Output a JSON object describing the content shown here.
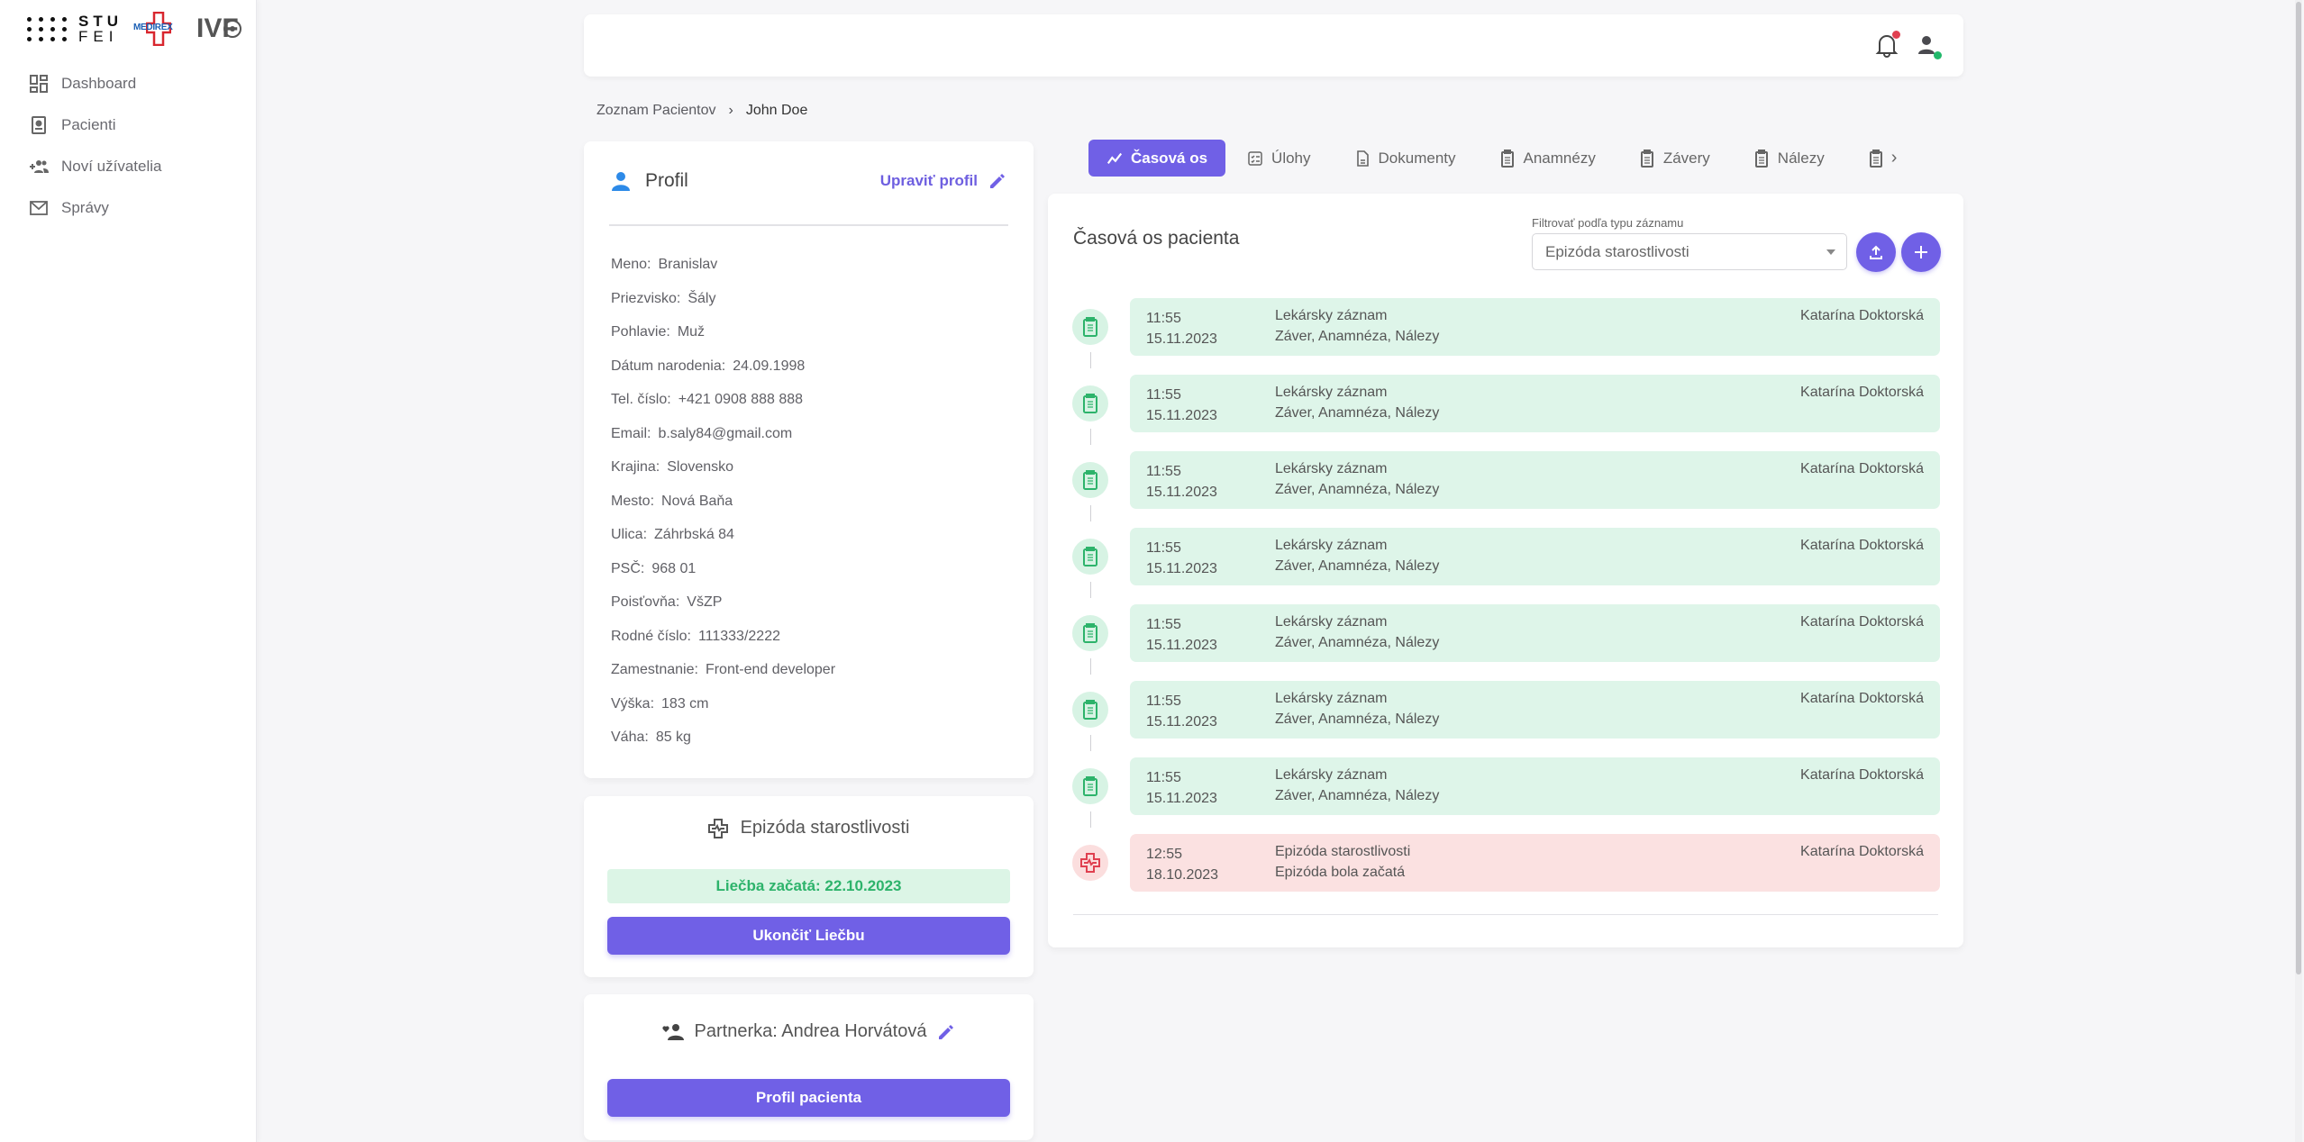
{
  "logo": {
    "stu": "STU",
    "fei": "FEI",
    "medirex": "MEDIREX",
    "ivf": "IVF"
  },
  "sidebar": {
    "items": [
      {
        "label": "Dashboard",
        "icon": "dashboard-icon"
      },
      {
        "label": "Pacienti",
        "icon": "patient-badge-icon"
      },
      {
        "label": "Noví užívatelia",
        "icon": "add-users-icon"
      },
      {
        "label": "Správy",
        "icon": "mail-icon"
      }
    ]
  },
  "breadcrumb": {
    "parent": "Zoznam Pacientov",
    "current": "John Doe"
  },
  "profile": {
    "title": "Profil",
    "edit_label": "Upraviť profil",
    "fields": [
      {
        "label": "Meno:",
        "value": "Branislav"
      },
      {
        "label": "Priezvisko:",
        "value": "Šály"
      },
      {
        "label": "Pohlavie:",
        "value": "Muž"
      },
      {
        "label": "Dátum narodenia:",
        "value": "24.09.1998"
      },
      {
        "label": "Tel. číslo:",
        "value": "+421 0908 888 888"
      },
      {
        "label": "Email:",
        "value": "b.saly84@gmail.com"
      },
      {
        "label": "Krajina:",
        "value": "Slovensko"
      },
      {
        "label": "Mesto:",
        "value": "Nová Baňa"
      },
      {
        "label": "Ulica:",
        "value": "Záhrbská 84"
      },
      {
        "label": "PSČ:",
        "value": "968 01"
      },
      {
        "label": "Poisťovňa:",
        "value": "VšZP"
      },
      {
        "label": "Rodné číslo:",
        "value": "111333/2222"
      },
      {
        "label": "Zamestnanie:",
        "value": "Front-end developer"
      },
      {
        "label": "Výška:",
        "value": "183 cm"
      },
      {
        "label": "Váha:",
        "value": "85 kg"
      }
    ]
  },
  "episode": {
    "title": "Epizóda starostlivosti",
    "status": "Liečba začatá: 22.10.2023",
    "end_button": "Ukončiť Liečbu"
  },
  "partner": {
    "title": "Partnerka: Andrea Horvátová",
    "button": "Profil pacienta"
  },
  "tabs": [
    {
      "label": "Časová os",
      "active": true
    },
    {
      "label": "Úlohy"
    },
    {
      "label": "Dokumenty"
    },
    {
      "label": "Anamnézy"
    },
    {
      "label": "Závery"
    },
    {
      "label": "Nálezy"
    }
  ],
  "timeline": {
    "title": "Časová os pacienta",
    "filter_label": "Filtrovať podľa typu záznamu",
    "filter_value": "Epizóda starostlivosti",
    "items": [
      {
        "type": "green",
        "time": "11:55",
        "date": "15.11.2023",
        "title": "Lekársky záznam",
        "subtitle": "Záver, Anamnéza, Nálezy",
        "doctor": "Katarína Doktorská"
      },
      {
        "type": "green",
        "time": "11:55",
        "date": "15.11.2023",
        "title": "Lekársky záznam",
        "subtitle": "Záver, Anamnéza, Nálezy",
        "doctor": "Katarína Doktorská"
      },
      {
        "type": "green",
        "time": "11:55",
        "date": "15.11.2023",
        "title": "Lekársky záznam",
        "subtitle": "Záver, Anamnéza, Nálezy",
        "doctor": "Katarína Doktorská"
      },
      {
        "type": "green",
        "time": "11:55",
        "date": "15.11.2023",
        "title": "Lekársky záznam",
        "subtitle": "Záver, Anamnéza, Nálezy",
        "doctor": "Katarína Doktorská"
      },
      {
        "type": "green",
        "time": "11:55",
        "date": "15.11.2023",
        "title": "Lekársky záznam",
        "subtitle": "Záver, Anamnéza, Nálezy",
        "doctor": "Katarína Doktorská"
      },
      {
        "type": "green",
        "time": "11:55",
        "date": "15.11.2023",
        "title": "Lekársky záznam",
        "subtitle": "Záver, Anamnéza, Nálezy",
        "doctor": "Katarína Doktorská"
      },
      {
        "type": "green",
        "time": "11:55",
        "date": "15.11.2023",
        "title": "Lekársky záznam",
        "subtitle": "Záver, Anamnéza, Nálezy",
        "doctor": "Katarína Doktorská"
      },
      {
        "type": "red",
        "time": "12:55",
        "date": "18.10.2023",
        "title": "Epizóda starostlivosti",
        "subtitle": "Epizóda bola začatá",
        "doctor": "Katarína Doktorská"
      }
    ]
  },
  "colors": {
    "accent": "#7060e6",
    "green_bg": "#def5e9",
    "red_bg": "#fbe1e1",
    "success": "#2db36b",
    "danger": "#e04050"
  }
}
